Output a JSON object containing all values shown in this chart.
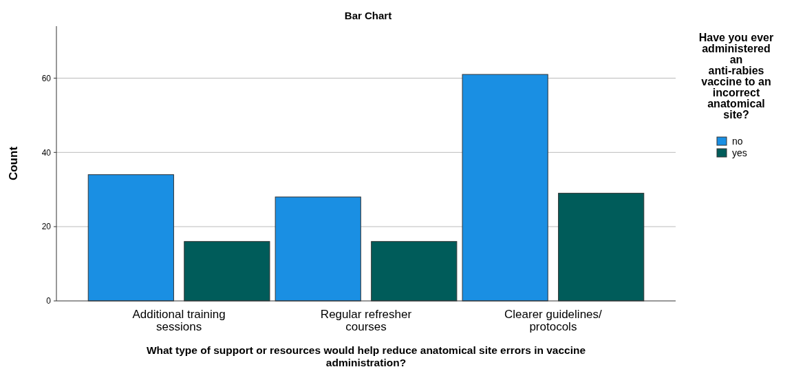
{
  "chart_data": {
    "type": "bar",
    "title": "Bar Chart",
    "xlabel": "What type of support or resources would help reduce anatomical site errors in vaccine administration?",
    "ylabel": "Count",
    "legend_title": "Have you ever administered an anti-rabies vaccine to an incorrect anatomical site?",
    "categories": [
      "Additional training sessions",
      "Regular refresher courses",
      "Clearer guidelines/ protocols"
    ],
    "series": [
      {
        "name": "no",
        "color": "#1a8fe3",
        "values": [
          34,
          28,
          61
        ]
      },
      {
        "name": "yes",
        "color": "#005c5a",
        "values": [
          16,
          16,
          29
        ]
      }
    ],
    "ylim": [
      0,
      74
    ],
    "yticks": [
      0,
      20,
      40,
      60
    ],
    "grid": "y",
    "legend": "right"
  }
}
